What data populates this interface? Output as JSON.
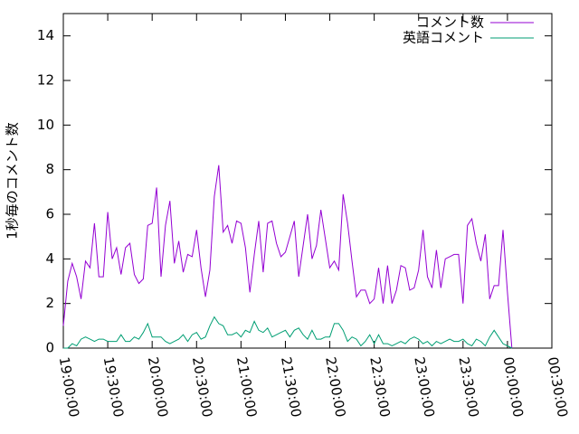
{
  "chart_data": {
    "type": "line",
    "ylabel": "1秒毎のコメント数",
    "x": [
      "19:00:00",
      "19:03:00",
      "19:06:00",
      "19:09:00",
      "19:12:00",
      "19:15:00",
      "19:18:00",
      "19:21:00",
      "19:24:00",
      "19:27:00",
      "19:30:00",
      "19:33:00",
      "19:36:00",
      "19:39:00",
      "19:42:00",
      "19:45:00",
      "19:48:00",
      "19:51:00",
      "19:54:00",
      "19:57:00",
      "20:00:00",
      "20:03:00",
      "20:06:00",
      "20:09:00",
      "20:12:00",
      "20:15:00",
      "20:18:00",
      "20:21:00",
      "20:24:00",
      "20:27:00",
      "20:30:00",
      "20:33:00",
      "20:36:00",
      "20:39:00",
      "20:42:00",
      "20:45:00",
      "20:48:00",
      "20:51:00",
      "20:54:00",
      "20:57:00",
      "21:00:00",
      "21:03:00",
      "21:06:00",
      "21:09:00",
      "21:12:00",
      "21:15:00",
      "21:18:00",
      "21:21:00",
      "21:24:00",
      "21:27:00",
      "21:30:00",
      "21:33:00",
      "21:36:00",
      "21:39:00",
      "21:42:00",
      "21:45:00",
      "21:48:00",
      "21:51:00",
      "21:54:00",
      "21:57:00",
      "22:00:00",
      "22:03:00",
      "22:06:00",
      "22:09:00",
      "22:12:00",
      "22:15:00",
      "22:18:00",
      "22:21:00",
      "22:24:00",
      "22:27:00",
      "22:30:00",
      "22:33:00",
      "22:36:00",
      "22:39:00",
      "22:42:00",
      "22:45:00",
      "22:48:00",
      "22:51:00",
      "22:54:00",
      "22:57:00",
      "23:00:00",
      "23:03:00",
      "23:06:00",
      "23:09:00",
      "23:12:00",
      "23:15:00",
      "23:18:00",
      "23:21:00",
      "23:24:00",
      "23:27:00",
      "23:30:00",
      "23:33:00",
      "23:36:00",
      "23:39:00",
      "23:42:00",
      "23:45:00",
      "23:48:00",
      "23:51:00",
      "23:54:00",
      "23:57:00",
      "00:00:00",
      "00:03:00"
    ],
    "series": [
      {
        "name": "コメント数",
        "color": "#9400d3",
        "values": [
          1.0,
          3.0,
          3.8,
          3.2,
          2.2,
          3.9,
          3.6,
          5.6,
          3.2,
          3.2,
          6.1,
          4.0,
          4.5,
          3.3,
          4.5,
          4.7,
          3.3,
          2.9,
          3.1,
          5.5,
          5.6,
          7.2,
          3.2,
          5.5,
          6.6,
          3.8,
          4.8,
          3.4,
          4.2,
          4.1,
          5.3,
          3.6,
          2.3,
          3.5,
          6.8,
          8.2,
          5.2,
          5.5,
          4.7,
          5.7,
          5.6,
          4.5,
          2.5,
          4.2,
          5.7,
          3.4,
          5.6,
          5.7,
          4.7,
          4.1,
          4.3,
          5.0,
          5.7,
          3.2,
          4.6,
          6.0,
          4.0,
          4.6,
          6.2,
          4.9,
          3.6,
          3.9,
          3.5,
          6.9,
          5.6,
          3.9,
          2.3,
          2.6,
          2.6,
          2.0,
          2.2,
          3.6,
          2.0,
          3.7,
          2.0,
          2.6,
          3.7,
          3.6,
          2.6,
          2.7,
          3.5,
          5.3,
          3.2,
          2.7,
          4.4,
          2.7,
          4.0,
          4.1,
          4.2,
          4.2,
          2.0,
          5.5,
          5.8,
          4.7,
          3.9,
          5.1,
          2.2,
          2.8,
          2.8,
          5.3,
          2.5,
          0
        ]
      },
      {
        "name": "英語コメント",
        "color": "#009e73",
        "values": [
          0,
          0,
          0.2,
          0.1,
          0.4,
          0.5,
          0.4,
          0.3,
          0.4,
          0.4,
          0.3,
          0.3,
          0.3,
          0.6,
          0.3,
          0.3,
          0.5,
          0.4,
          0.7,
          1.1,
          0.5,
          0.5,
          0.5,
          0.3,
          0.2,
          0.3,
          0.4,
          0.6,
          0.3,
          0.6,
          0.7,
          0.4,
          0.5,
          1.0,
          1.4,
          1.1,
          1.0,
          0.6,
          0.6,
          0.7,
          0.5,
          0.8,
          0.7,
          1.2,
          0.8,
          0.7,
          0.9,
          0.5,
          0.6,
          0.7,
          0.8,
          0.5,
          0.8,
          0.9,
          0.6,
          0.4,
          0.8,
          0.4,
          0.4,
          0.5,
          0.5,
          1.1,
          1.1,
          0.8,
          0.3,
          0.5,
          0.4,
          0.1,
          0.3,
          0.6,
          0.2,
          0.6,
          0.2,
          0.2,
          0.1,
          0.2,
          0.3,
          0.2,
          0.4,
          0.5,
          0.4,
          0.2,
          0.3,
          0.1,
          0.3,
          0.2,
          0.3,
          0.4,
          0.3,
          0.3,
          0.4,
          0.2,
          0.1,
          0.4,
          0.3,
          0.1,
          0.5,
          0.8,
          0.5,
          0.2,
          0.1,
          0
        ]
      }
    ],
    "xlim": [
      "19:00:00",
      "00:30:00"
    ],
    "xticks": [
      "19:00:00",
      "19:30:00",
      "20:00:00",
      "20:30:00",
      "21:00:00",
      "21:30:00",
      "22:00:00",
      "22:30:00",
      "23:00:00",
      "23:30:00",
      "00:00:00",
      "00:30:00"
    ],
    "ylim": [
      0,
      15
    ],
    "yticks": [
      0,
      2,
      4,
      6,
      8,
      10,
      12,
      14
    ],
    "legend": "top-right"
  }
}
